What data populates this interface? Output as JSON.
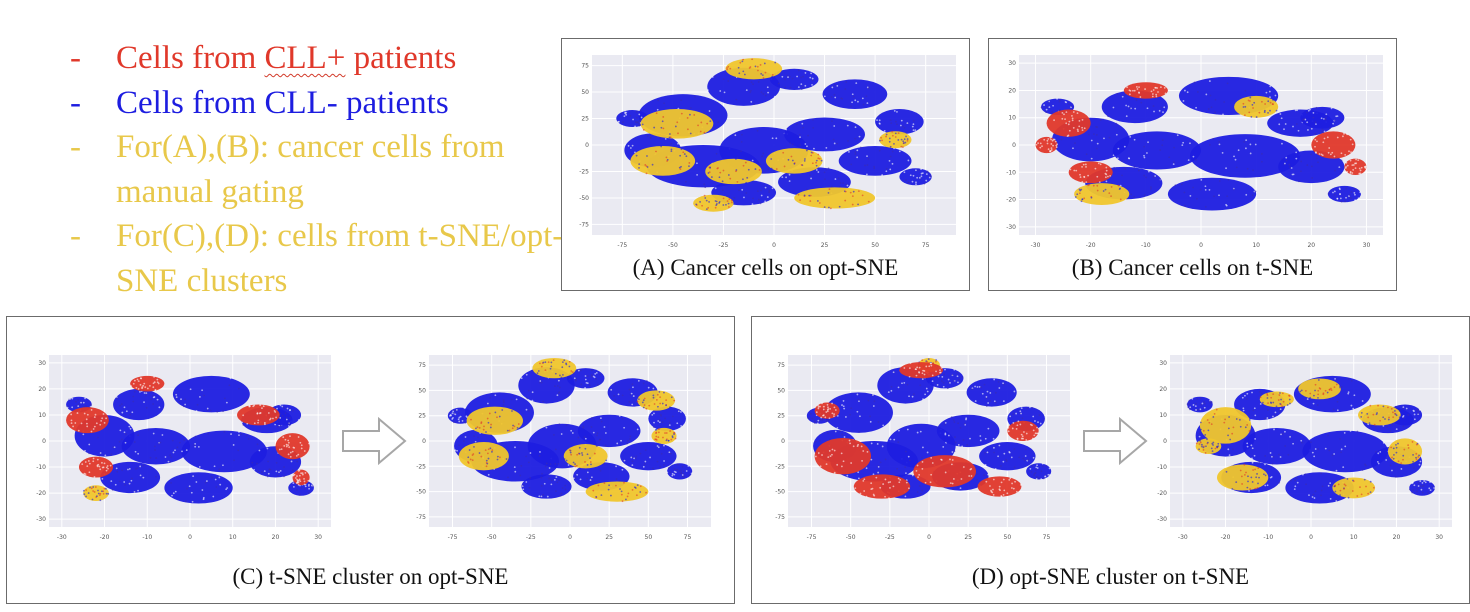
{
  "legend": [
    {
      "dash": "-",
      "text": "Cells from ",
      "text_squiggle": "CLL+",
      "text_after": " patients",
      "color": "#e0382a"
    },
    {
      "dash": "-",
      "text": "Cells from CLL- patients",
      "color": "#1d1de0"
    },
    {
      "dash": "-",
      "text": "For(A),(B): cancer cells from manual gating",
      "color": "#e8c84a"
    },
    {
      "dash": "-",
      "text": "For(C),(D): cells from t-SNE/opt-SNE clusters",
      "color": "#e8c84a"
    }
  ],
  "captions": {
    "A": "(A) Cancer cells on opt-SNE",
    "B": "(B) Cancer cells on t-SNE",
    "C": "(C) t-SNE cluster on opt-SNE",
    "D": "(D) opt-SNE cluster on t-SNE"
  },
  "colors": {
    "red": "#e0382a",
    "blue": "#1d1de0",
    "yellow": "#f0c62c",
    "plot_bg": "#eaeaf2",
    "arrow": "#a7a7a7"
  },
  "chart_data": [
    {
      "id": "A",
      "type": "scatter",
      "embedding": "opt-SNE",
      "highlight": "cancer cells (manual gating)",
      "x_ticks": [
        -75,
        -50,
        -25,
        0,
        25,
        50,
        75
      ],
      "y_ticks": [
        75,
        50,
        25,
        0,
        -25,
        -50,
        -75
      ],
      "xlim": [
        -90,
        90
      ],
      "ylim": [
        -85,
        85
      ],
      "grid": true
    },
    {
      "id": "B",
      "type": "scatter",
      "embedding": "t-SNE",
      "highlight": "cancer cells (manual gating)",
      "x_ticks": [
        -30,
        -20,
        -10,
        0,
        10,
        20,
        30
      ],
      "y_ticks": [
        30,
        20,
        10,
        0,
        -10,
        -20,
        -30
      ],
      "xlim": [
        -33,
        33
      ],
      "ylim": [
        -33,
        33
      ],
      "grid": true
    },
    {
      "id": "C1",
      "type": "scatter",
      "embedding": "t-SNE",
      "highlight": "t-SNE cluster",
      "x_ticks": [
        -30,
        -20,
        -10,
        0,
        10,
        20,
        30
      ],
      "y_ticks": [
        30,
        20,
        10,
        0,
        -10,
        -20,
        -30
      ],
      "xlim": [
        -33,
        33
      ],
      "ylim": [
        -33,
        33
      ],
      "grid": true
    },
    {
      "id": "C2",
      "type": "scatter",
      "embedding": "opt-SNE",
      "highlight": "t-SNE cluster",
      "x_ticks": [
        -75,
        -50,
        -25,
        0,
        25,
        50,
        75
      ],
      "y_ticks": [
        75,
        50,
        25,
        0,
        -25,
        -50,
        -75
      ],
      "xlim": [
        -90,
        90
      ],
      "ylim": [
        -85,
        85
      ],
      "grid": true
    },
    {
      "id": "D1",
      "type": "scatter",
      "embedding": "opt-SNE",
      "highlight": "opt-SNE cluster",
      "x_ticks": [
        -75,
        -50,
        -25,
        0,
        25,
        50,
        75
      ],
      "y_ticks": [
        75,
        50,
        25,
        0,
        -25,
        -50,
        -75
      ],
      "xlim": [
        -90,
        90
      ],
      "ylim": [
        -85,
        85
      ],
      "grid": true
    },
    {
      "id": "D2",
      "type": "scatter",
      "embedding": "t-SNE",
      "highlight": "opt-SNE cluster",
      "x_ticks": [
        -30,
        -20,
        -10,
        0,
        10,
        20,
        30
      ],
      "y_ticks": [
        30,
        20,
        10,
        0,
        -10,
        -20,
        -30
      ],
      "xlim": [
        -33,
        33
      ],
      "ylim": [
        -33,
        33
      ],
      "grid": true
    }
  ]
}
